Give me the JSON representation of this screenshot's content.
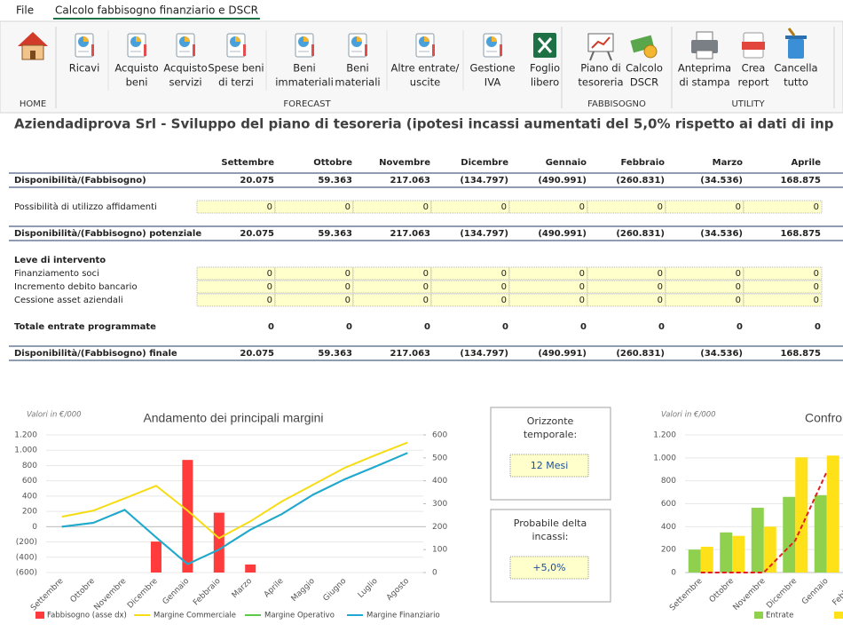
{
  "menu": {
    "items": [
      "File",
      "Calcolo fabbisogno finanziario e DSCR"
    ],
    "active": 1
  },
  "ribbon": {
    "groups": [
      {
        "label": "HOME",
        "buttons": [
          {
            "label": []
          }
        ]
      },
      {
        "label": "FORECAST",
        "buttons": [
          {
            "label": [
              "Ricavi"
            ]
          },
          {
            "label": [
              "Acquisto",
              "beni"
            ]
          },
          {
            "label": [
              "Acquisto",
              "servizi"
            ]
          },
          {
            "label": [
              "Spese beni",
              "di terzi"
            ]
          },
          {
            "label": [
              "Beni",
              "immateriali"
            ]
          },
          {
            "label": [
              "Beni",
              "materiali"
            ]
          },
          {
            "label": [
              "Altre entrate/",
              "uscite"
            ]
          },
          {
            "label": [
              "Gestione",
              "IVA"
            ]
          },
          {
            "label": [
              "Foglio",
              "libero"
            ]
          }
        ]
      },
      {
        "label": "FABBISOGNO",
        "buttons": [
          {
            "label": [
              "Piano di",
              "tesoreria"
            ]
          },
          {
            "label": [
              "Calcolo",
              "DSCR"
            ]
          }
        ]
      },
      {
        "label": "UTILITY",
        "buttons": [
          {
            "label": [
              "Anteprima",
              "di stampa"
            ]
          },
          {
            "label": [
              "Crea",
              "report"
            ]
          },
          {
            "label": [
              "Cancella",
              "tutto"
            ]
          }
        ]
      }
    ]
  },
  "sheet": {
    "title": "Aziendadiprova Srl - Sviluppo del piano di tesoreria (ipotesi incassi aumentati del 5,0% rispetto ai dati di inp",
    "months": [
      "Settembre",
      "Ottobre",
      "Novembre",
      "Dicembre",
      "Gennaio",
      "Febbraio",
      "Marzo",
      "Aprile"
    ],
    "negative_color": "#c00000",
    "rows": [
      {
        "label": "Disponibilità/(Fabbisogno)",
        "bold": true,
        "ruled": true,
        "values": [
          "20.075",
          "59.363",
          "217.063",
          "(134.797)",
          "(490.991)",
          "(260.831)",
          "(34.536)",
          "168.875"
        ]
      },
      {
        "label": "Possibilità di utilizzo affidamenti",
        "input": true,
        "values": [
          "0",
          "0",
          "0",
          "0",
          "0",
          "0",
          "0",
          "0"
        ]
      },
      {
        "label": "Disponibilità/(Fabbisogno) potenziale",
        "bold": true,
        "ruled": true,
        "values": [
          "20.075",
          "59.363",
          "217.063",
          "(134.797)",
          "(490.991)",
          "(260.831)",
          "(34.536)",
          "168.875"
        ]
      },
      {
        "label": "Leve di intervento",
        "bold": true
      },
      {
        "label": "Finanziamento soci",
        "input": true,
        "values": [
          "0",
          "0",
          "0",
          "0",
          "0",
          "0",
          "0",
          "0"
        ]
      },
      {
        "label": "Incremento debito bancario",
        "input": true,
        "values": [
          "0",
          "0",
          "0",
          "0",
          "0",
          "0",
          "0",
          "0"
        ]
      },
      {
        "label": "Cessione asset aziendali",
        "input": true,
        "values": [
          "0",
          "0",
          "0",
          "0",
          "0",
          "0",
          "0",
          "0"
        ]
      },
      {
        "label": "Totale entrate programmate",
        "bold": true,
        "values": [
          "0",
          "0",
          "0",
          "0",
          "0",
          "0",
          "0",
          "0"
        ]
      },
      {
        "label": "Disponibilità/(Fabbisogno) finale",
        "bold": true,
        "ruled": true,
        "values": [
          "20.075",
          "59.363",
          "217.063",
          "(134.797)",
          "(490.991)",
          "(260.831)",
          "(34.536)",
          "168.875"
        ]
      }
    ]
  },
  "panels": [
    {
      "label": [
        "Orizzonte",
        "temporale:"
      ],
      "value": "12 Mesi"
    },
    {
      "label": [
        "Probabile delta",
        "incassi:"
      ],
      "value": "+5,0%"
    }
  ],
  "chart_data": [
    {
      "type": "combo",
      "title": "Andamento dei principali margini",
      "note": "Valori in €/000",
      "categories": [
        "Settembre",
        "Ottobre",
        "Novembre",
        "Dicembre",
        "Gennaio",
        "Febbraio",
        "Marzo",
        "Aprile",
        "Maggio",
        "Giugno",
        "Luglio",
        "Agosto"
      ],
      "series": [
        {
          "name": "Fabbisogno (asse dx)",
          "type": "bar",
          "axis": "y2",
          "color": "#ff3b3b",
          "values": [
            0,
            0,
            0,
            135,
            491,
            261,
            35,
            0,
            0,
            0,
            0,
            0
          ]
        },
        {
          "name": "Margine Commerciale",
          "type": "line",
          "color": "#f5dc14",
          "values": [
            130,
            210,
            370,
            535,
            210,
            -150,
            70,
            330,
            550,
            770,
            940,
            1100
          ]
        },
        {
          "name": "Margine Operativo",
          "type": "line",
          "color": "#5cc94a",
          "values": [
            0,
            50,
            220,
            -140,
            -490,
            -300,
            -40,
            165,
            420,
            620,
            790,
            965
          ]
        },
        {
          "name": "Margine Finanziario",
          "type": "line",
          "color": "#1fa8d6",
          "values": [
            0,
            50,
            220,
            -140,
            -490,
            -300,
            -40,
            165,
            420,
            620,
            790,
            965
          ]
        }
      ],
      "ylim": [
        -600,
        1200
      ],
      "yticks": [
        {
          "value": -600,
          "label": "(600)"
        },
        {
          "value": -400,
          "label": "(400)"
        },
        {
          "value": -200,
          "label": "(200)"
        },
        0,
        200,
        400,
        600,
        800,
        {
          "value": 1000,
          "label": "1.000"
        },
        {
          "value": 1200,
          "label": "1.200"
        }
      ],
      "y2lim": [
        0,
        600
      ],
      "y2ticks": [
        0,
        100,
        200,
        300,
        400,
        500,
        600
      ],
      "grid": true,
      "legend": "bottom"
    },
    {
      "type": "combo",
      "title": "Confron",
      "note": "Valori in €/000",
      "categories": [
        "Settembre",
        "Ottobre",
        "Novembre",
        "Dicembre",
        "Gennaio",
        "Febbraio"
      ],
      "series": [
        {
          "name": "Entrate",
          "type": "bar",
          "color": "#8fd14f",
          "values": [
            200,
            350,
            565,
            660,
            675,
            null
          ]
        },
        {
          "name": null,
          "type": "bar",
          "color": "#ffe11a",
          "values": [
            225,
            320,
            400,
            1005,
            1020,
            null
          ]
        },
        {
          "name": null,
          "type": "line",
          "dash": true,
          "color": "#e02020",
          "values": [
            0,
            0,
            0,
            280,
            880,
            null
          ]
        }
      ],
      "ylim": [
        0,
        1200
      ],
      "yticks": [
        0,
        200,
        400,
        600,
        800,
        {
          "value": 1000,
          "label": "1.000"
        },
        {
          "value": 1200,
          "label": "1.200"
        }
      ],
      "grid": true,
      "legend": "bottom"
    }
  ]
}
